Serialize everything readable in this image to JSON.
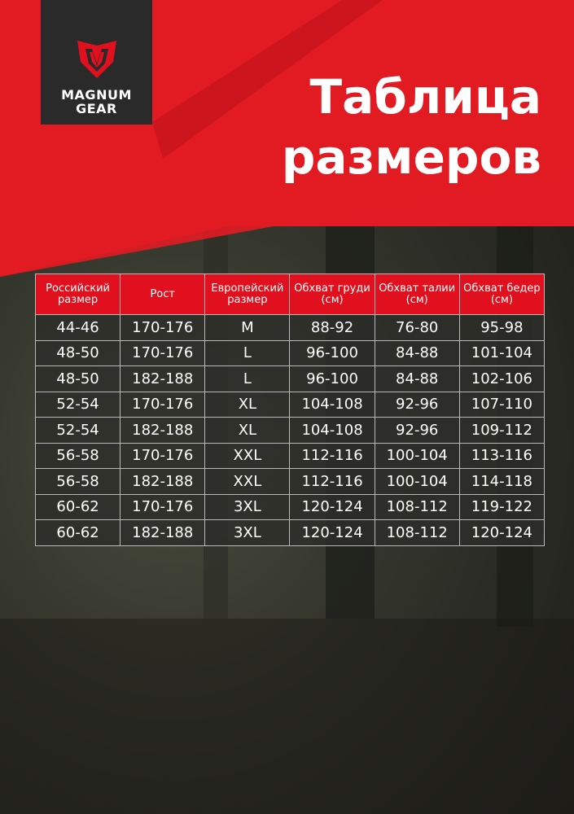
{
  "brand": {
    "name_line1": "MAGNUM",
    "name_line2": "GEAR"
  },
  "title": {
    "line1": "Таблица",
    "line2": "размеров"
  },
  "colors": {
    "accent": "#e0101e",
    "logo_bg": "#2b2a2a"
  },
  "table": {
    "headers": [
      "Российский размер",
      "Рост",
      "Европейский размер",
      "Обхват груди (см)",
      "Обхват талии (см)",
      "Обхват бедер (см)"
    ],
    "rows": [
      [
        "44-46",
        "170-176",
        "M",
        "88-92",
        "76-80",
        "95-98"
      ],
      [
        "48-50",
        "170-176",
        "L",
        "96-100",
        "84-88",
        "101-104"
      ],
      [
        "48-50",
        "182-188",
        "L",
        "96-100",
        "84-88",
        "102-106"
      ],
      [
        "52-54",
        "170-176",
        "XL",
        "104-108",
        "92-96",
        "107-110"
      ],
      [
        "52-54",
        "182-188",
        "XL",
        "104-108",
        "92-96",
        "109-112"
      ],
      [
        "56-58",
        "170-176",
        "XXL",
        "112-116",
        "100-104",
        "113-116"
      ],
      [
        "56-58",
        "182-188",
        "XXL",
        "112-116",
        "100-104",
        "114-118"
      ],
      [
        "60-62",
        "170-176",
        "3XL",
        "120-124",
        "108-112",
        "119-122"
      ],
      [
        "60-62",
        "182-188",
        "3XL",
        "120-124",
        "108-112",
        "120-124"
      ]
    ]
  }
}
